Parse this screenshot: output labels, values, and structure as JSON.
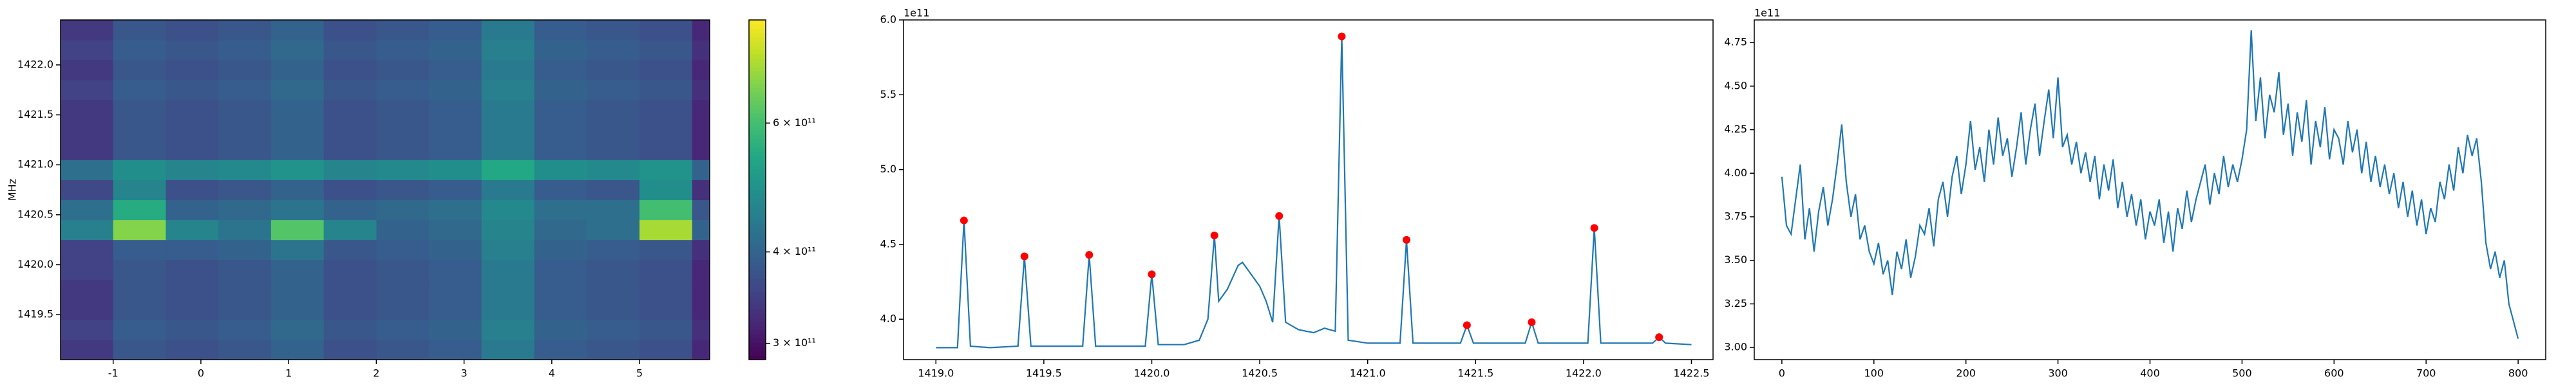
{
  "chart_data": [
    {
      "type": "heatmap",
      "y_label": "MHz",
      "colormap": "viridis",
      "zscale": "log",
      "xlim": [
        -1.6,
        5.8
      ],
      "ylim": [
        1419.05,
        1422.45
      ],
      "xticks": [
        -1,
        0,
        1,
        2,
        3,
        4,
        5
      ],
      "yticks": [
        1419.5,
        {
          "value": 1420,
          "label": "1420.0"
        },
        1420.5,
        {
          "value": 1421,
          "label": "1421.0"
        },
        1421.5,
        {
          "value": 1422,
          "label": "1422.0"
        }
      ],
      "zlim": [
        285000000000.0,
        830000000000.0
      ],
      "zticks": [
        {
          "value": 300000000000.0,
          "label": "3 × 10¹¹"
        },
        {
          "value": 400000000000.0,
          "label": "4 × 10¹¹"
        },
        {
          "value": 600000000000.0,
          "label": "6 × 10¹¹"
        }
      ],
      "x": [
        -1.3,
        -0.7,
        -0.1,
        0.5,
        1.1,
        1.7,
        2.3,
        2.9,
        3.5,
        4.1,
        4.7,
        5.3,
        5.9
      ],
      "y": [
        1419.15,
        1419.35,
        1419.55,
        1419.75,
        1419.95,
        1420.15,
        1420.35,
        1420.55,
        1420.75,
        1420.95,
        1421.15,
        1421.35,
        1421.55,
        1421.75,
        1421.95,
        1422.15,
        1422.35
      ],
      "z": [
        [
          340000000000.0,
          380000000000.0,
          370000000000.0,
          380000000000.0,
          400000000000.0,
          370000000000.0,
          380000000000.0,
          390000000000.0,
          440000000000.0,
          390000000000.0,
          380000000000.0,
          370000000000.0,
          320000000000.0
        ],
        [
          350000000000.0,
          390000000000.0,
          380000000000.0,
          390000000000.0,
          410000000000.0,
          380000000000.0,
          390000000000.0,
          400000000000.0,
          450000000000.0,
          400000000000.0,
          390000000000.0,
          380000000000.0,
          330000000000.0
        ],
        [
          340000000000.0,
          380000000000.0,
          370000000000.0,
          380000000000.0,
          400000000000.0,
          370000000000.0,
          380000000000.0,
          390000000000.0,
          440000000000.0,
          390000000000.0,
          380000000000.0,
          370000000000.0,
          320000000000.0
        ],
        [
          340000000000.0,
          380000000000.0,
          370000000000.0,
          380000000000.0,
          400000000000.0,
          370000000000.0,
          380000000000.0,
          390000000000.0,
          440000000000.0,
          390000000000.0,
          380000000000.0,
          370000000000.0,
          320000000000.0
        ],
        [
          350000000000.0,
          380000000000.0,
          370000000000.0,
          380000000000.0,
          400000000000.0,
          370000000000.0,
          380000000000.0,
          390000000000.0,
          440000000000.0,
          390000000000.0,
          380000000000.0,
          370000000000.0,
          320000000000.0
        ],
        [
          350000000000.0,
          390000000000.0,
          390000000000.0,
          400000000000.0,
          430000000000.0,
          380000000000.0,
          390000000000.0,
          400000000000.0,
          450000000000.0,
          400000000000.0,
          390000000000.0,
          380000000000.0,
          330000000000.0
        ],
        [
          450000000000.0,
          680000000000.0,
          460000000000.0,
          430000000000.0,
          620000000000.0,
          460000000000.0,
          400000000000.0,
          410000000000.0,
          460000000000.0,
          410000000000.0,
          420000000000.0,
          720000000000.0,
          400000000000.0
        ],
        [
          420000000000.0,
          550000000000.0,
          400000000000.0,
          410000000000.0,
          430000000000.0,
          400000000000.0,
          410000000000.0,
          420000000000.0,
          470000000000.0,
          420000000000.0,
          420000000000.0,
          600000000000.0,
          380000000000.0
        ],
        [
          360000000000.0,
          460000000000.0,
          370000000000.0,
          380000000000.0,
          400000000000.0,
          370000000000.0,
          380000000000.0,
          390000000000.0,
          440000000000.0,
          390000000000.0,
          380000000000.0,
          480000000000.0,
          330000000000.0
        ],
        [
          420000000000.0,
          480000000000.0,
          460000000000.0,
          470000000000.0,
          490000000000.0,
          460000000000.0,
          470000000000.0,
          480000000000.0,
          540000000000.0,
          480000000000.0,
          470000000000.0,
          490000000000.0,
          400000000000.0
        ],
        [
          340000000000.0,
          380000000000.0,
          370000000000.0,
          380000000000.0,
          400000000000.0,
          370000000000.0,
          380000000000.0,
          390000000000.0,
          440000000000.0,
          390000000000.0,
          380000000000.0,
          370000000000.0,
          320000000000.0
        ],
        [
          340000000000.0,
          380000000000.0,
          370000000000.0,
          380000000000.0,
          400000000000.0,
          370000000000.0,
          380000000000.0,
          390000000000.0,
          440000000000.0,
          390000000000.0,
          380000000000.0,
          370000000000.0,
          320000000000.0
        ],
        [
          340000000000.0,
          380000000000.0,
          370000000000.0,
          380000000000.0,
          400000000000.0,
          370000000000.0,
          380000000000.0,
          390000000000.0,
          440000000000.0,
          390000000000.0,
          380000000000.0,
          370000000000.0,
          320000000000.0
        ],
        [
          350000000000.0,
          390000000000.0,
          380000000000.0,
          390000000000.0,
          410000000000.0,
          380000000000.0,
          390000000000.0,
          400000000000.0,
          450000000000.0,
          400000000000.0,
          390000000000.0,
          380000000000.0,
          330000000000.0
        ],
        [
          340000000000.0,
          380000000000.0,
          370000000000.0,
          380000000000.0,
          400000000000.0,
          370000000000.0,
          380000000000.0,
          390000000000.0,
          440000000000.0,
          390000000000.0,
          380000000000.0,
          370000000000.0,
          320000000000.0
        ],
        [
          350000000000.0,
          390000000000.0,
          380000000000.0,
          390000000000.0,
          410000000000.0,
          380000000000.0,
          390000000000.0,
          400000000000.0,
          450000000000.0,
          400000000000.0,
          390000000000.0,
          380000000000.0,
          330000000000.0
        ],
        [
          340000000000.0,
          380000000000.0,
          370000000000.0,
          380000000000.0,
          400000000000.0,
          370000000000.0,
          380000000000.0,
          390000000000.0,
          440000000000.0,
          390000000000.0,
          380000000000.0,
          370000000000.0,
          320000000000.0
        ]
      ]
    },
    {
      "type": "line",
      "offset_label": "1e11",
      "color": "#1f77b4",
      "xlim": [
        1418.85,
        1422.6
      ],
      "ylim": [
        3.73,
        6.0
      ],
      "xticks": [
        {
          "value": 1419,
          "label": "1419.0"
        },
        1419.5,
        {
          "value": 1420,
          "label": "1420.0"
        },
        1420.5,
        {
          "value": 1421,
          "label": "1421.0"
        },
        1421.5,
        {
          "value": 1422,
          "label": "1422.0"
        },
        1422.5
      ],
      "yticks": [
        {
          "value": 4,
          "label": "4.0"
        },
        4.5,
        {
          "value": 5,
          "label": "5.0"
        },
        5.5,
        {
          "value": 6,
          "label": "6.0"
        }
      ],
      "x": [
        1419.0,
        1419.1,
        1419.13,
        1419.16,
        1419.25,
        1419.38,
        1419.41,
        1419.44,
        1419.55,
        1419.68,
        1419.71,
        1419.74,
        1419.85,
        1419.97,
        1420.0,
        1420.03,
        1420.15,
        1420.22,
        1420.26,
        1420.29,
        1420.31,
        1420.35,
        1420.4,
        1420.42,
        1420.46,
        1420.5,
        1420.53,
        1420.56,
        1420.59,
        1420.62,
        1420.68,
        1420.75,
        1420.8,
        1420.85,
        1420.88,
        1420.91,
        1421.0,
        1421.1,
        1421.15,
        1421.18,
        1421.21,
        1421.3,
        1421.43,
        1421.46,
        1421.49,
        1421.6,
        1421.73,
        1421.76,
        1421.79,
        1421.9,
        1422.02,
        1422.05,
        1422.08,
        1422.2,
        1422.32,
        1422.35,
        1422.38,
        1422.5
      ],
      "values": [
        3.81,
        3.81,
        4.66,
        3.82,
        3.81,
        3.82,
        4.42,
        3.82,
        3.82,
        3.82,
        4.43,
        3.82,
        3.82,
        3.82,
        4.3,
        3.83,
        3.83,
        3.86,
        4.0,
        4.56,
        4.12,
        4.2,
        4.36,
        4.38,
        4.3,
        4.22,
        4.12,
        3.98,
        4.69,
        3.98,
        3.93,
        3.91,
        3.94,
        3.92,
        5.89,
        3.86,
        3.84,
        3.84,
        3.84,
        4.53,
        3.84,
        3.84,
        3.84,
        3.96,
        3.84,
        3.84,
        3.84,
        3.98,
        3.84,
        3.84,
        3.84,
        4.61,
        3.84,
        3.84,
        3.84,
        3.88,
        3.84,
        3.83
      ],
      "markers": {
        "color": "red",
        "x": [
          1419.13,
          1419.41,
          1419.71,
          1420.0,
          1420.29,
          1420.59,
          1420.88,
          1421.18,
          1421.46,
          1421.76,
          1422.05,
          1422.35
        ],
        "values": [
          4.66,
          4.42,
          4.43,
          4.3,
          4.56,
          4.69,
          5.89,
          4.53,
          3.96,
          3.98,
          4.61,
          3.88
        ]
      }
    },
    {
      "type": "line",
      "offset_label": "1e11",
      "color": "#1f77b4",
      "xlim": [
        -30,
        830
      ],
      "ylim": [
        2.93,
        4.88
      ],
      "xticks": [
        0,
        100,
        200,
        300,
        400,
        500,
        600,
        700,
        800
      ],
      "yticks": [
        {
          "value": 3,
          "label": "3.00"
        },
        3.25,
        {
          "value": 3.5,
          "label": "3.50"
        },
        3.75,
        {
          "value": 4,
          "label": "4.00"
        },
        4.25,
        {
          "value": 4.5,
          "label": "4.50"
        },
        4.75
      ],
      "x": [
        0,
        5,
        10,
        15,
        20,
        25,
        30,
        35,
        40,
        45,
        50,
        55,
        60,
        65,
        70,
        75,
        80,
        85,
        90,
        95,
        100,
        105,
        110,
        115,
        120,
        125,
        130,
        135,
        140,
        145,
        150,
        155,
        160,
        165,
        170,
        175,
        180,
        185,
        190,
        195,
        200,
        205,
        210,
        215,
        220,
        225,
        230,
        235,
        240,
        245,
        250,
        255,
        260,
        265,
        270,
        275,
        280,
        285,
        290,
        295,
        300,
        305,
        310,
        315,
        320,
        325,
        330,
        335,
        340,
        345,
        350,
        355,
        360,
        365,
        370,
        375,
        380,
        385,
        390,
        395,
        400,
        405,
        410,
        415,
        420,
        425,
        430,
        435,
        440,
        445,
        450,
        455,
        460,
        465,
        470,
        475,
        480,
        485,
        490,
        495,
        500,
        505,
        510,
        515,
        520,
        525,
        530,
        535,
        540,
        545,
        550,
        555,
        560,
        565,
        570,
        575,
        580,
        585,
        590,
        595,
        600,
        605,
        610,
        615,
        620,
        625,
        630,
        635,
        640,
        645,
        650,
        655,
        660,
        665,
        670,
        675,
        680,
        685,
        690,
        695,
        700,
        705,
        710,
        715,
        720,
        725,
        730,
        735,
        740,
        745,
        750,
        755,
        760,
        765,
        770,
        775,
        780,
        785,
        790,
        795,
        800
      ],
      "values": [
        3.98,
        3.7,
        3.65,
        3.85,
        4.05,
        3.62,
        3.8,
        3.55,
        3.78,
        3.92,
        3.7,
        3.85,
        4.05,
        4.28,
        3.95,
        3.75,
        3.88,
        3.62,
        3.7,
        3.55,
        3.48,
        3.6,
        3.42,
        3.5,
        3.3,
        3.55,
        3.45,
        3.62,
        3.4,
        3.52,
        3.7,
        3.65,
        3.8,
        3.58,
        3.85,
        3.95,
        3.75,
        3.98,
        4.1,
        3.88,
        4.05,
        4.3,
        4.02,
        4.15,
        3.95,
        4.25,
        4.05,
        4.32,
        4.1,
        4.2,
        3.98,
        4.15,
        4.35,
        4.05,
        4.25,
        4.4,
        4.1,
        4.3,
        4.48,
        4.2,
        4.55,
        4.15,
        4.22,
        4.05,
        4.18,
        4.0,
        4.12,
        3.95,
        4.1,
        3.85,
        4.05,
        3.9,
        4.08,
        3.8,
        3.95,
        3.75,
        3.88,
        3.7,
        3.85,
        3.62,
        3.78,
        3.7,
        3.85,
        3.6,
        3.78,
        3.55,
        3.8,
        3.68,
        3.9,
        3.72,
        3.85,
        3.95,
        4.05,
        3.82,
        4.0,
        3.88,
        4.1,
        3.92,
        4.05,
        3.95,
        4.08,
        4.25,
        4.82,
        4.3,
        4.55,
        4.2,
        4.45,
        4.35,
        4.58,
        4.22,
        4.4,
        4.1,
        4.35,
        4.18,
        4.42,
        4.05,
        4.3,
        4.15,
        4.38,
        4.08,
        4.25,
        4.2,
        4.05,
        4.3,
        4.12,
        4.25,
        4.0,
        4.18,
        3.95,
        4.1,
        3.92,
        4.05,
        3.88,
        4.0,
        3.8,
        3.95,
        3.75,
        3.9,
        3.7,
        3.85,
        3.65,
        3.8,
        3.72,
        3.95,
        3.85,
        4.05,
        3.9,
        4.15,
        4.0,
        4.22,
        4.1,
        4.2,
        3.95,
        3.6,
        3.45,
        3.55,
        3.4,
        3.5,
        3.25,
        3.15,
        3.05
      ]
    }
  ]
}
